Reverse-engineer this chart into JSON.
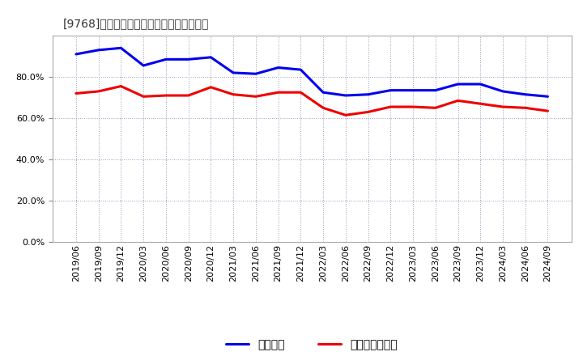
{
  "title": "[9768]　固定比率、固定長期適合率の推移",
  "x_labels": [
    "2019/06",
    "2019/09",
    "2019/12",
    "2020/03",
    "2020/06",
    "2020/09",
    "2020/12",
    "2021/03",
    "2021/06",
    "2021/09",
    "2021/12",
    "2022/03",
    "2022/06",
    "2022/09",
    "2022/12",
    "2023/03",
    "2023/06",
    "2023/09",
    "2023/12",
    "2024/03",
    "2024/06",
    "2024/09"
  ],
  "fixed_ratio": [
    91.0,
    93.0,
    94.0,
    85.5,
    88.5,
    88.5,
    89.5,
    82.0,
    81.5,
    84.5,
    83.5,
    72.5,
    71.0,
    71.5,
    73.5,
    73.5,
    73.5,
    76.5,
    76.5,
    73.0,
    71.5,
    70.5
  ],
  "fixed_long_ratio": [
    72.0,
    73.0,
    75.5,
    70.5,
    71.0,
    71.0,
    75.0,
    71.5,
    70.5,
    72.5,
    72.5,
    65.0,
    61.5,
    63.0,
    65.5,
    65.5,
    65.0,
    68.5,
    67.0,
    65.5,
    65.0,
    63.5
  ],
  "line1_color": "#0000ee",
  "line2_color": "#ee0000",
  "line1_label": "固定比率",
  "line2_label": "固定長期適合率",
  "ylim": [
    0,
    100
  ],
  "yticks": [
    0,
    20,
    40,
    60,
    80
  ],
  "background_color": "#ffffff",
  "plot_bg_color": "#ffffff",
  "grid_color": "#9999bb",
  "title_fontsize": 12,
  "legend_fontsize": 10,
  "tick_fontsize": 8
}
